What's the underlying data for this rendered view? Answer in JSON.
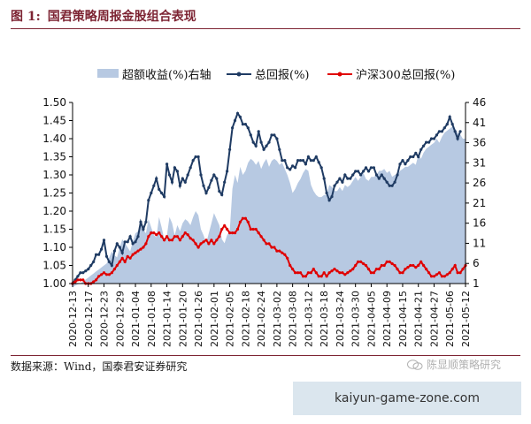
{
  "figure": {
    "label": "图 1:",
    "title": "国君策略周报金股组合表现"
  },
  "footer": {
    "source": "数据来源：Wind，国泰君安证券研究",
    "watermark": "陈显顺策略研究"
  },
  "banner": {
    "text": "kaiyun-game-zone.com"
  },
  "chart_data": {
    "type": "line",
    "title": "",
    "legend_position": "top",
    "grid": false,
    "series": [
      {
        "name": "超额收益(%)右轴",
        "axis": "right",
        "render": "area",
        "color": "#b7c9e2",
        "values": [
          0.0,
          0.5,
          0.8,
          1.0,
          1.5,
          2.0,
          2.5,
          3.0,
          3.5,
          4.0,
          4.5,
          5.0,
          5.5,
          6.0,
          7.5,
          9.0,
          8.0,
          7.5,
          10.0,
          12.0,
          11.0,
          10.0,
          9.0,
          11.5,
          13.5,
          14.0,
          15.5,
          14.5,
          13.5,
          17.0,
          15.0,
          13.0,
          12.5,
          17.5,
          15.0,
          12.0,
          13.0,
          17.5,
          16.0,
          13.0,
          15.5,
          14.0,
          16.0,
          17.0,
          16.5,
          15.5,
          17.5,
          19.0,
          18.0,
          14.5,
          13.0,
          11.0,
          13.5,
          16.0,
          18.5,
          17.0,
          15.5,
          12.0,
          11.0,
          13.0,
          14.0,
          24.5,
          28.0,
          26.0,
          30.0,
          28.0,
          29.0,
          31.0,
          32.0,
          31.5,
          30.5,
          31.5,
          29.5,
          31.0,
          32.0,
          30.0,
          31.5,
          32.0,
          31.5,
          30.5,
          31.0,
          29.5,
          28.0,
          26.0,
          23.5,
          24.5,
          26.0,
          27.0,
          28.5,
          29.5,
          29.0,
          25.5,
          24.0,
          23.0,
          22.5,
          22.5,
          23.0,
          23.0,
          25.5,
          25.0,
          24.0,
          24.0,
          25.0,
          24.0,
          25.5,
          25.0,
          25.5,
          26.5,
          27.5,
          26.5,
          27.5,
          28.5,
          27.0,
          26.5,
          27.5,
          27.5,
          28.0,
          29.0,
          29.0,
          29.5,
          28.5,
          29.0,
          27.5,
          28.0,
          28.0,
          29.0,
          29.5,
          30.0,
          30.0,
          30.5,
          31.0,
          30.5,
          33.0,
          32.0,
          33.5,
          34.5,
          35.0,
          35.5,
          36.0,
          37.0,
          36.0,
          37.5,
          38.5,
          39.0,
          39.5,
          40.0,
          39.5,
          38.5,
          38.0,
          37.0,
          37.0
        ]
      },
      {
        "name": "总回报(%)",
        "axis": "left",
        "render": "line-marker",
        "color": "#1f3b63",
        "values": [
          1.0,
          1.01,
          1.02,
          1.03,
          1.03,
          1.035,
          1.04,
          1.05,
          1.06,
          1.08,
          1.08,
          1.095,
          1.12,
          1.075,
          1.06,
          1.05,
          1.09,
          1.11,
          1.1,
          1.085,
          1.115,
          1.115,
          1.13,
          1.11,
          1.115,
          1.13,
          1.17,
          1.15,
          1.17,
          1.23,
          1.25,
          1.27,
          1.29,
          1.26,
          1.25,
          1.24,
          1.33,
          1.3,
          1.28,
          1.32,
          1.31,
          1.27,
          1.29,
          1.28,
          1.3,
          1.32,
          1.34,
          1.35,
          1.35,
          1.3,
          1.27,
          1.25,
          1.265,
          1.285,
          1.3,
          1.29,
          1.255,
          1.245,
          1.28,
          1.31,
          1.37,
          1.43,
          1.45,
          1.47,
          1.46,
          1.44,
          1.44,
          1.43,
          1.41,
          1.39,
          1.38,
          1.42,
          1.39,
          1.37,
          1.38,
          1.39,
          1.41,
          1.41,
          1.4,
          1.37,
          1.34,
          1.34,
          1.32,
          1.315,
          1.325,
          1.32,
          1.34,
          1.34,
          1.34,
          1.33,
          1.35,
          1.34,
          1.34,
          1.35,
          1.335,
          1.32,
          1.29,
          1.25,
          1.23,
          1.24,
          1.27,
          1.28,
          1.29,
          1.28,
          1.3,
          1.29,
          1.29,
          1.3,
          1.31,
          1.31,
          1.3,
          1.31,
          1.32,
          1.31,
          1.32,
          1.32,
          1.3,
          1.29,
          1.3,
          1.29,
          1.28,
          1.27,
          1.27,
          1.28,
          1.3,
          1.33,
          1.34,
          1.33,
          1.34,
          1.35,
          1.35,
          1.36,
          1.35,
          1.37,
          1.38,
          1.39,
          1.39,
          1.4,
          1.4,
          1.41,
          1.42,
          1.42,
          1.43,
          1.44,
          1.46,
          1.44,
          1.42,
          1.4,
          1.42
        ]
      },
      {
        "name": "沪深300总回报(%)",
        "axis": "left",
        "render": "line-marker",
        "color": "#e00000",
        "values": [
          1.0,
          1.005,
          1.01,
          1.01,
          1.01,
          1.0,
          1.0,
          1.0,
          1.005,
          1.01,
          1.02,
          1.025,
          1.03,
          1.025,
          1.025,
          1.03,
          1.04,
          1.05,
          1.06,
          1.07,
          1.06,
          1.075,
          1.07,
          1.08,
          1.085,
          1.09,
          1.095,
          1.1,
          1.11,
          1.13,
          1.14,
          1.14,
          1.135,
          1.14,
          1.13,
          1.12,
          1.13,
          1.12,
          1.12,
          1.13,
          1.13,
          1.12,
          1.13,
          1.14,
          1.135,
          1.125,
          1.12,
          1.11,
          1.1,
          1.11,
          1.115,
          1.12,
          1.11,
          1.12,
          1.11,
          1.12,
          1.13,
          1.15,
          1.16,
          1.15,
          1.14,
          1.14,
          1.14,
          1.15,
          1.17,
          1.18,
          1.18,
          1.17,
          1.15,
          1.15,
          1.15,
          1.14,
          1.13,
          1.12,
          1.11,
          1.11,
          1.1,
          1.1,
          1.09,
          1.09,
          1.085,
          1.08,
          1.07,
          1.05,
          1.04,
          1.03,
          1.03,
          1.03,
          1.02,
          1.02,
          1.03,
          1.03,
          1.04,
          1.03,
          1.02,
          1.02,
          1.03,
          1.02,
          1.03,
          1.035,
          1.04,
          1.035,
          1.03,
          1.03,
          1.025,
          1.03,
          1.035,
          1.04,
          1.05,
          1.06,
          1.06,
          1.055,
          1.05,
          1.04,
          1.03,
          1.03,
          1.04,
          1.04,
          1.05,
          1.05,
          1.06,
          1.06,
          1.055,
          1.05,
          1.04,
          1.03,
          1.03,
          1.04,
          1.045,
          1.05,
          1.05,
          1.045,
          1.05,
          1.06,
          1.05,
          1.04,
          1.03,
          1.02,
          1.02,
          1.025,
          1.03,
          1.02,
          1.02,
          1.025,
          1.03,
          1.04,
          1.05,
          1.03,
          1.03,
          1.04,
          1.05
        ]
      }
    ],
    "x_ticks": [
      "2020-12-13",
      "2020-12-17",
      "2020-12-23",
      "2020-12-29",
      "2021-01-04",
      "2021-01-08",
      "2021-01-14",
      "2021-01-20",
      "2021-01-26",
      "2021-02-01",
      "2021-02-05",
      "2021-02-18",
      "2021-02-24",
      "2021-03-02",
      "2021-03-08",
      "2021-03-12",
      "2021-03-18",
      "2021-03-24",
      "2021-03-30",
      "2021-04-05",
      "2021-04-09",
      "2021-04-15",
      "2021-04-21",
      "2021-04-27",
      "2021-05-06",
      "2021-05-12"
    ],
    "y_left": {
      "range": [
        1.0,
        1.5
      ],
      "ticks": [
        "1.00",
        "1.05",
        "1.10",
        "1.15",
        "1.20",
        "1.25",
        "1.30",
        "1.35",
        "1.40",
        "1.45",
        "1.50"
      ]
    },
    "y_right": {
      "range": [
        1,
        46
      ],
      "ticks": [
        "1",
        "6",
        "11",
        "16",
        "21",
        "26",
        "31",
        "36",
        "41",
        "46"
      ]
    }
  }
}
